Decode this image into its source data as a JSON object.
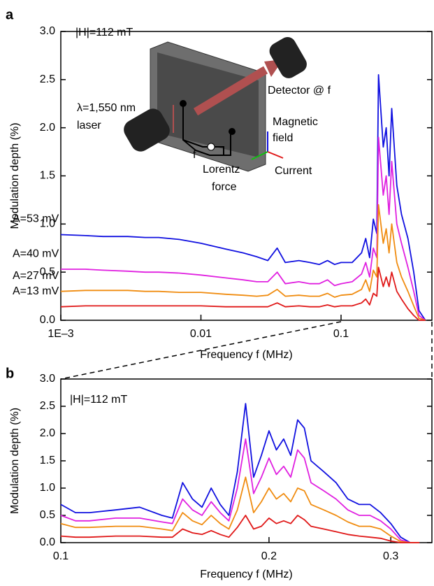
{
  "chart_data": [
    {
      "type": "line",
      "panel_label": "a",
      "annotation": "|H|=112 mT",
      "xlabel": "Frequency f (MHz)",
      "ylabel": "Modulation depth (%)",
      "log_x": true,
      "xlim": [
        0.001,
        0.445
      ],
      "xticks": [
        {
          "value": 0.001,
          "label": "1E–3"
        },
        0.01,
        0.1
      ],
      "ylim": [
        0,
        3.0
      ],
      "yticks": [
        {
          "value": 0,
          "label": "0.0"
        },
        {
          "value": 0.5,
          "label": "0.5"
        },
        {
          "value": 1,
          "label": "1.0"
        },
        {
          "value": 1.5,
          "label": "1.5"
        },
        {
          "value": 2,
          "label": "2.0"
        },
        {
          "value": 2.5,
          "label": "2.5"
        },
        {
          "value": 3,
          "label": "3.0"
        }
      ],
      "inset_labels": [
        "λ=1,550 nm",
        "laser",
        "Detector @ f",
        "Magnetic",
        "field",
        "Lorentz",
        "force",
        "Current",
        "f"
      ],
      "x": [
        0.001,
        0.0015,
        0.002,
        0.003,
        0.004,
        0.005,
        0.007,
        0.01,
        0.015,
        0.02,
        0.025,
        0.03,
        0.035,
        0.04,
        0.05,
        0.06,
        0.07,
        0.08,
        0.09,
        0.1,
        0.12,
        0.14,
        0.15,
        0.16,
        0.17,
        0.18,
        0.185,
        0.2,
        0.21,
        0.22,
        0.23,
        0.25,
        0.27,
        0.3,
        0.33,
        0.36,
        0.4
      ],
      "series": [
        {
          "name": "A=53 mV",
          "color": "#1010e0",
          "values": [
            0.89,
            0.88,
            0.87,
            0.87,
            0.86,
            0.86,
            0.84,
            0.8,
            0.74,
            0.7,
            0.66,
            0.62,
            0.75,
            0.6,
            0.62,
            0.6,
            0.58,
            0.62,
            0.58,
            0.6,
            0.6,
            0.7,
            0.85,
            0.65,
            1.05,
            0.9,
            2.55,
            1.8,
            2.0,
            1.5,
            2.2,
            1.4,
            1.1,
            0.85,
            0.5,
            0.1,
            0.0
          ]
        },
        {
          "name": "A=40 mV",
          "color": "#e020e0",
          "values": [
            0.53,
            0.53,
            0.52,
            0.51,
            0.5,
            0.5,
            0.49,
            0.47,
            0.44,
            0.42,
            0.4,
            0.4,
            0.5,
            0.38,
            0.4,
            0.38,
            0.38,
            0.42,
            0.36,
            0.38,
            0.4,
            0.48,
            0.6,
            0.45,
            0.75,
            0.65,
            1.9,
            1.3,
            1.5,
            1.1,
            1.65,
            1.0,
            0.8,
            0.55,
            0.3,
            0.05,
            0.0
          ]
        },
        {
          "name": "A=27 mV",
          "color": "#f08c10",
          "values": [
            0.3,
            0.31,
            0.31,
            0.31,
            0.3,
            0.3,
            0.29,
            0.29,
            0.27,
            0.26,
            0.25,
            0.26,
            0.32,
            0.25,
            0.26,
            0.25,
            0.25,
            0.28,
            0.24,
            0.26,
            0.27,
            0.32,
            0.42,
            0.3,
            0.52,
            0.45,
            1.2,
            0.8,
            0.95,
            0.7,
            1.0,
            0.6,
            0.45,
            0.3,
            0.15,
            0.02,
            0.0
          ]
        },
        {
          "name": "A=13 mV",
          "color": "#e01818",
          "values": [
            0.14,
            0.15,
            0.15,
            0.15,
            0.15,
            0.15,
            0.15,
            0.15,
            0.14,
            0.14,
            0.14,
            0.14,
            0.18,
            0.14,
            0.15,
            0.14,
            0.14,
            0.16,
            0.14,
            0.15,
            0.15,
            0.18,
            0.22,
            0.16,
            0.28,
            0.25,
            0.55,
            0.35,
            0.45,
            0.35,
            0.5,
            0.3,
            0.22,
            0.12,
            0.05,
            0.0,
            0.0
          ]
        }
      ]
    },
    {
      "type": "line",
      "panel_label": "b",
      "annotation": "|H|=112 mT",
      "xlabel": "Frequency f (MHz)",
      "ylabel": "Modulation depth (%)",
      "log_x": true,
      "xlim": [
        0.1,
        0.344
      ],
      "xticks": [
        0.1,
        0.2,
        0.3
      ],
      "ylim": [
        0,
        3.0
      ],
      "yticks": [
        {
          "value": 0,
          "label": "0.0"
        },
        {
          "value": 0.5,
          "label": "0.5"
        },
        {
          "value": 1,
          "label": "1.0"
        },
        {
          "value": 1.5,
          "label": "1.5"
        },
        {
          "value": 2,
          "label": "2.0"
        },
        {
          "value": 2.5,
          "label": "2.5"
        },
        {
          "value": 3,
          "label": "3.0"
        }
      ],
      "x": [
        0.1,
        0.105,
        0.11,
        0.12,
        0.13,
        0.14,
        0.145,
        0.15,
        0.155,
        0.16,
        0.165,
        0.17,
        0.175,
        0.18,
        0.185,
        0.19,
        0.195,
        0.2,
        0.205,
        0.21,
        0.215,
        0.22,
        0.225,
        0.23,
        0.24,
        0.25,
        0.26,
        0.27,
        0.28,
        0.29,
        0.3,
        0.31,
        0.32,
        0.33
      ],
      "series": [
        {
          "color": "#1010e0",
          "values": [
            0.7,
            0.55,
            0.55,
            0.6,
            0.65,
            0.5,
            0.45,
            1.1,
            0.8,
            0.65,
            1.0,
            0.7,
            0.5,
            1.3,
            2.55,
            1.2,
            1.6,
            2.05,
            1.7,
            1.9,
            1.6,
            2.25,
            2.1,
            1.5,
            1.3,
            1.1,
            0.8,
            0.7,
            0.7,
            0.55,
            0.35,
            0.1,
            0.0,
            0.0
          ]
        },
        {
          "color": "#e020e0",
          "values": [
            0.5,
            0.4,
            0.4,
            0.45,
            0.45,
            0.38,
            0.35,
            0.8,
            0.6,
            0.5,
            0.75,
            0.55,
            0.4,
            1.0,
            1.9,
            0.9,
            1.2,
            1.55,
            1.25,
            1.4,
            1.2,
            1.7,
            1.55,
            1.1,
            0.95,
            0.8,
            0.6,
            0.5,
            0.5,
            0.4,
            0.25,
            0.05,
            0.0,
            0.0
          ]
        },
        {
          "color": "#f08c10",
          "values": [
            0.35,
            0.28,
            0.28,
            0.3,
            0.3,
            0.25,
            0.22,
            0.55,
            0.4,
            0.33,
            0.5,
            0.35,
            0.25,
            0.6,
            1.2,
            0.55,
            0.75,
            1.0,
            0.8,
            0.9,
            0.75,
            1.0,
            0.95,
            0.7,
            0.6,
            0.5,
            0.38,
            0.3,
            0.3,
            0.25,
            0.12,
            0.02,
            0.0,
            0.0
          ]
        },
        {
          "color": "#e01818",
          "values": [
            0.12,
            0.1,
            0.1,
            0.12,
            0.12,
            0.1,
            0.1,
            0.25,
            0.18,
            0.15,
            0.22,
            0.15,
            0.1,
            0.28,
            0.5,
            0.25,
            0.3,
            0.45,
            0.35,
            0.4,
            0.35,
            0.5,
            0.42,
            0.3,
            0.25,
            0.2,
            0.15,
            0.12,
            0.1,
            0.08,
            0.03,
            0.0,
            0.0,
            0.0
          ]
        }
      ]
    }
  ]
}
